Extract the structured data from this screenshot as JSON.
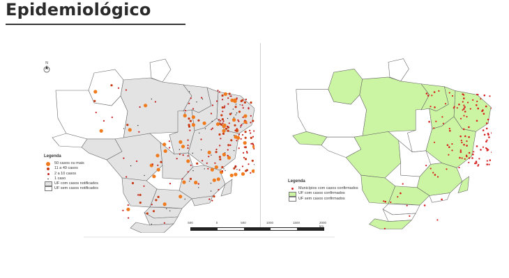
{
  "header": {
    "title": "Epidemiológico"
  },
  "colors": {
    "uf_notified_fill": "#e3e3e3",
    "uf_confirmed_fill": "#ccf5a3",
    "uf_none_fill": "#ffffff",
    "border": "#666666",
    "dot_large": "#f07a1c",
    "dot_medium": "#c83a12",
    "dot_small": "#c51b1b",
    "dot_tiny": "#2b2b2b",
    "municipio_dot": "#d61f1f"
  },
  "north_arrow": {
    "label": "N"
  },
  "legend_left": {
    "title": "Legenda",
    "items": [
      {
        "label": "50 casos ou mais",
        "symbol": "dot-large"
      },
      {
        "label": "11 a 49 casos",
        "symbol": "dot-medium"
      },
      {
        "label": "2 a 10 casos",
        "symbol": "dot-small"
      },
      {
        "label": "1 caso",
        "symbol": "dot-tiny"
      },
      {
        "label": "UF com casos notificados",
        "symbol": "box-gray"
      },
      {
        "label": "UF sem casos notificados",
        "symbol": "box-white"
      }
    ]
  },
  "legend_right": {
    "title": "Legenda",
    "items": [
      {
        "label": "Municípios com casos confirmados",
        "symbol": "dot-red"
      },
      {
        "label": "UF com casos confirmados",
        "symbol": "box-green"
      },
      {
        "label": "UF sem casos confirmados",
        "symbol": "box-white"
      }
    ]
  },
  "scale": {
    "labels": [
      "500",
      "0",
      "500",
      "1000",
      "1500",
      "2000 km"
    ]
  }
}
